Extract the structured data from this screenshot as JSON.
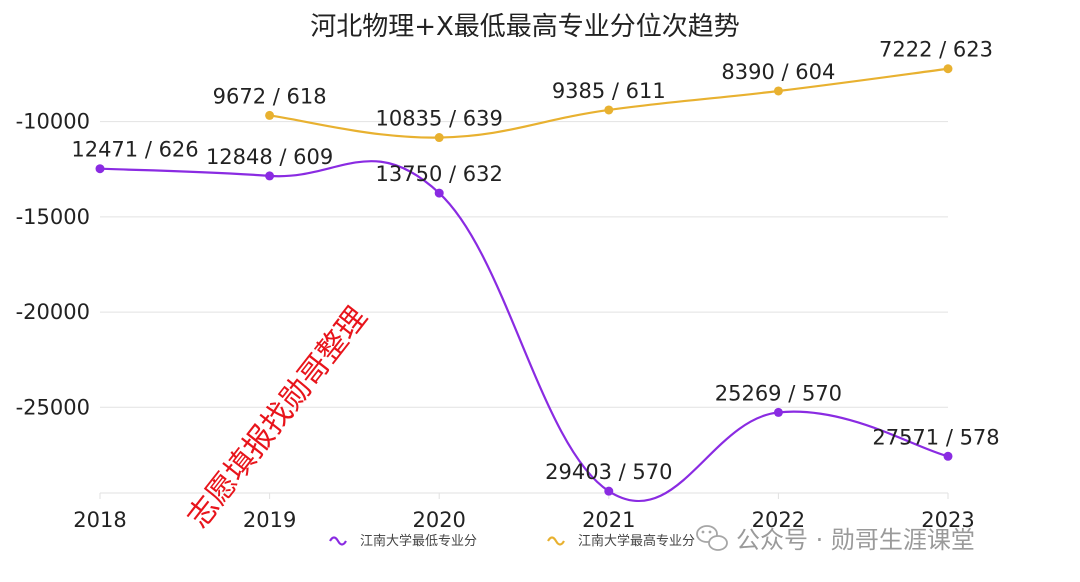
{
  "chart_data": {
    "type": "line",
    "title": "河北物理+X最低最高专业分位次趋势",
    "categories": [
      "2018",
      "2019",
      "2020",
      "2021",
      "2022",
      "2023"
    ],
    "yticks": [
      -10000,
      -15000,
      -20000,
      -25000
    ],
    "ylim": [
      -29500,
      -6500
    ],
    "grid": true,
    "legend_position": "bottom",
    "series": [
      {
        "name": "江南大学最低专业分",
        "color": "#8a2be2",
        "values": [
          -12471,
          -12848,
          -13750,
          -29403,
          -25269,
          -27571
        ],
        "labels": [
          "12471 / 626",
          "12848 / 609",
          "13750 / 632",
          "29403 / 570",
          "25269 / 570",
          "27571 / 578"
        ]
      },
      {
        "name": "江南大学最高专业分",
        "color": "#e8b130",
        "values": [
          null,
          -9672,
          -10835,
          -9385,
          -8390,
          -7222
        ],
        "labels": [
          null,
          "9672 / 618",
          "10835 / 639",
          "9385 / 611",
          "8390 / 604",
          "7222 / 623"
        ]
      }
    ]
  },
  "watermark": "志愿填报找勋哥整理",
  "wechat_footer": "公众号 · 勋哥生涯课堂"
}
